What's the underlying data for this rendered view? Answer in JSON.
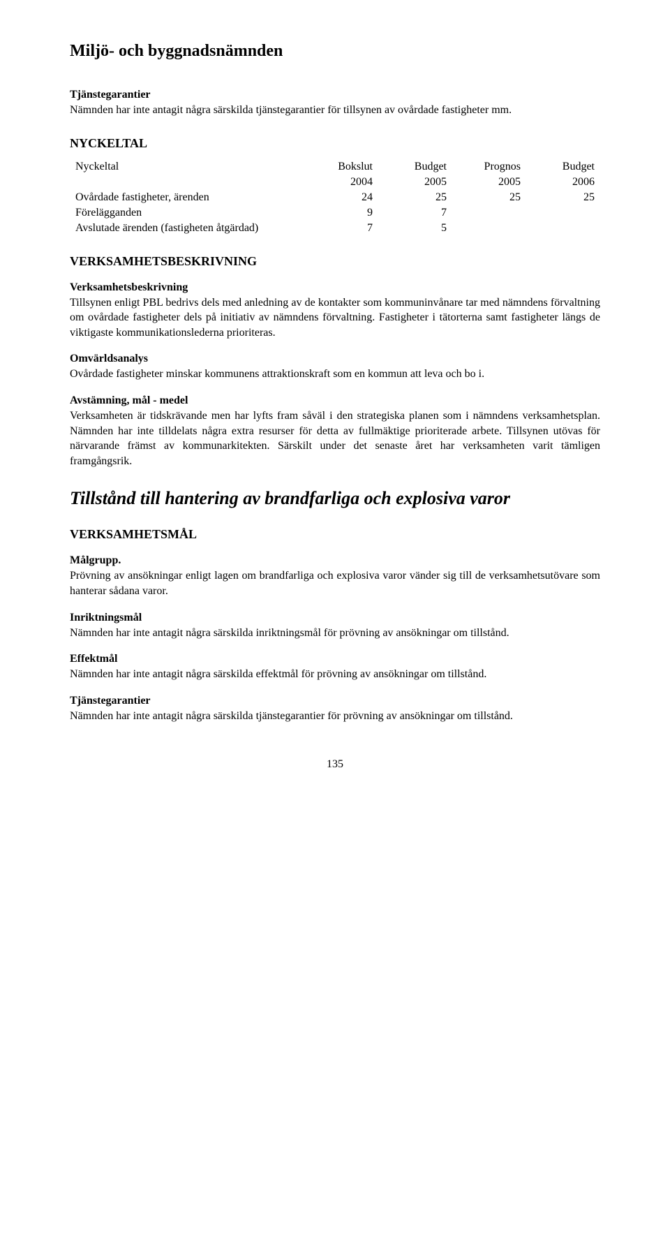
{
  "header": "Miljö- och byggnadsnämnden",
  "sec1": {
    "title": "Tjänstegarantier",
    "text": "Nämnden har inte antagit några särskilda tjänstegarantier för tillsynen av ovårdade fastigheter mm."
  },
  "nyckeltal": {
    "heading": "NYCKELTAL",
    "col_label": "Nyckeltal",
    "cols_top": [
      "Bokslut",
      "Budget",
      "Prognos",
      "Budget"
    ],
    "cols_year": [
      "2004",
      "2005",
      "2005",
      "2006"
    ],
    "rows": [
      {
        "label": "Ovårdade fastigheter, ärenden",
        "vals": [
          "24",
          "25",
          "25",
          "25"
        ]
      },
      {
        "label": "Förelägganden",
        "vals": [
          "9",
          "7",
          "",
          ""
        ]
      },
      {
        "label": "Avslutade ärenden (fastigheten åtgärdad)",
        "vals": [
          "7",
          "5",
          "",
          ""
        ]
      }
    ]
  },
  "vhb": {
    "heading": "VERKSAMHETSBESKRIVNING",
    "s1_title": "Verksamhetsbeskrivning",
    "s1_text": "Tillsynen enligt PBL bedrivs dels med anledning av de kontakter som kommuninvånare tar med nämndens förvaltning om ovårdade fastigheter dels på initiativ av nämndens förvaltning. Fastigheter i tätorterna samt fastigheter längs de viktigaste kommunikationslederna prioriteras.",
    "s2_title": "Omvärldsanalys",
    "s2_text": "Ovårdade fastigheter minskar kommunens attraktionskraft som en kommun att leva och bo i.",
    "s3_title": "Avstämning, mål - medel",
    "s3_text": "Verksamheten är tidskrävande men har lyfts fram såväl i den strategiska planen som i nämndens verksamhetsplan. Nämnden har inte tilldelats några extra resurser för detta av fullmäktige prioriterade arbete. Tillsynen utövas för närvarande främst av kommunarkitekten. Särskilt under det senaste året har verksamheten varit tämligen framgångsrik."
  },
  "italic_title": "Tillstånd till hantering av brandfarliga och explosiva varor",
  "vm": {
    "heading": "VERKSAMHETSMÅL",
    "s1_title": "Målgrupp.",
    "s1_text": "Prövning av ansökningar enligt lagen om brandfarliga och explosiva varor vänder sig till de verksamhetsutövare som hanterar sådana varor.",
    "s2_title": "Inriktningsmål",
    "s2_text": "Nämnden har inte antagit några särskilda inriktningsmål för prövning av ansökningar om tillstånd.",
    "s3_title": "Effektmål",
    "s3_text": "Nämnden har inte antagit några särskilda effektmål för prövning av ansökningar om tillstånd.",
    "s4_title": "Tjänstegarantier",
    "s4_text": "Nämnden har inte antagit några särskilda tjänstegarantier för prövning av ansökningar om tillstånd."
  },
  "page_number": "135"
}
